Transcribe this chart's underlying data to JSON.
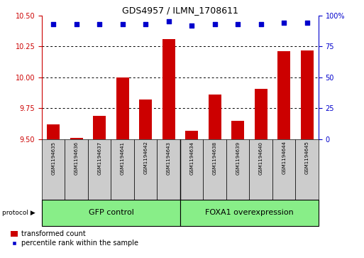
{
  "title": "GDS4957 / ILMN_1708611",
  "samples": [
    "GSM1194635",
    "GSM1194636",
    "GSM1194637",
    "GSM1194641",
    "GSM1194642",
    "GSM1194643",
    "GSM1194634",
    "GSM1194638",
    "GSM1194639",
    "GSM1194640",
    "GSM1194644",
    "GSM1194645"
  ],
  "transformed_count": [
    9.62,
    9.51,
    9.69,
    10.0,
    9.82,
    10.31,
    9.57,
    9.86,
    9.65,
    9.91,
    10.21,
    10.22
  ],
  "percentile_rank": [
    93,
    93,
    93,
    93,
    93,
    95,
    92,
    93,
    93,
    93,
    94,
    94
  ],
  "ylim_left": [
    9.5,
    10.5
  ],
  "ylim_right": [
    0,
    100
  ],
  "yticks_left": [
    9.5,
    9.75,
    10.0,
    10.25,
    10.5
  ],
  "yticks_right": [
    0,
    25,
    50,
    75,
    100
  ],
  "bar_color": "#cc0000",
  "dot_color": "#0000cc",
  "group1_label": "GFP control",
  "group2_label": "FOXA1 overexpression",
  "group1_indices": [
    0,
    1,
    2,
    3,
    4,
    5
  ],
  "group2_indices": [
    6,
    7,
    8,
    9,
    10,
    11
  ],
  "group_box_color": "#88ee88",
  "sample_box_color": "#cccccc",
  "legend_bar_label": "transformed count",
  "legend_dot_label": "percentile rank within the sample",
  "protocol_label": "protocol",
  "dot_size": 18,
  "bar_width": 0.55
}
